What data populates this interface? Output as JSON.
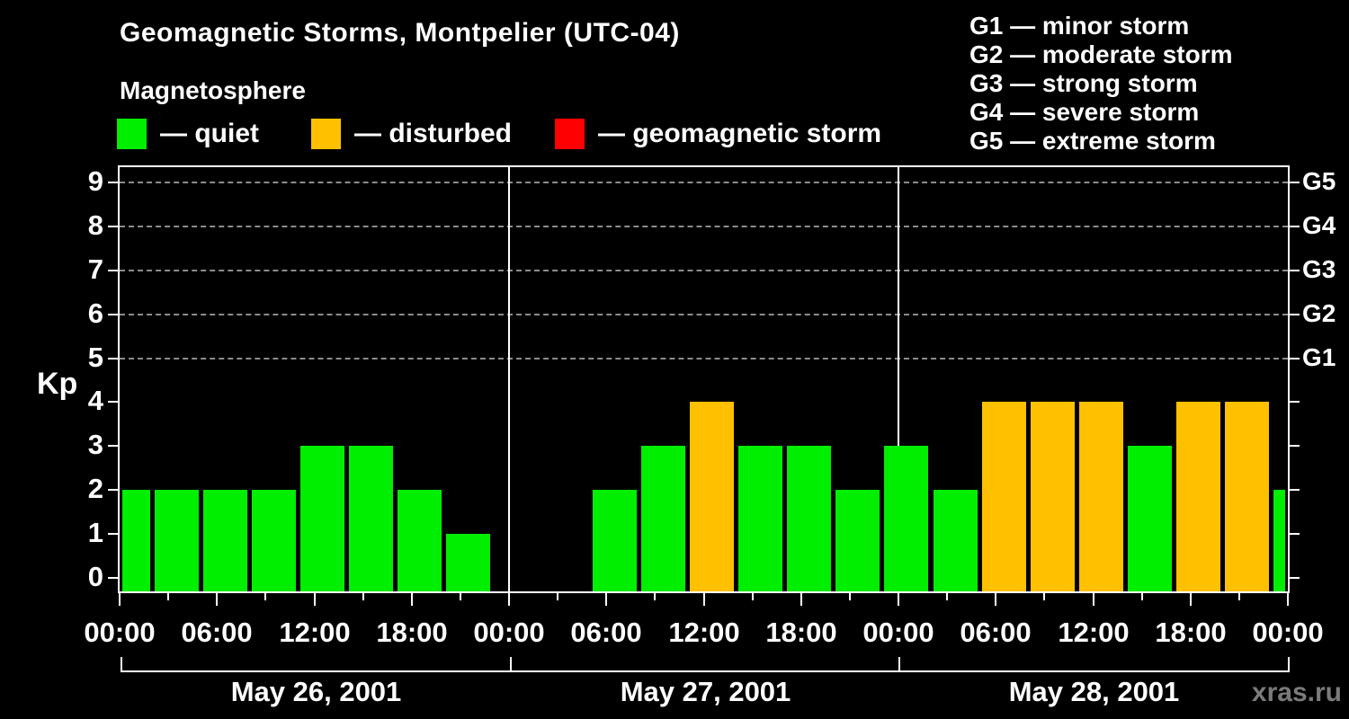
{
  "header": {
    "title": "Geomagnetic Storms, Montpelier (UTC-04)",
    "subtitle": "Magnetosphere",
    "condition_legend": [
      {
        "key": "quiet",
        "label": "— quiet",
        "color": "#00EE00"
      },
      {
        "key": "disturbed",
        "label": "— disturbed",
        "color": "#FFC000"
      },
      {
        "key": "storm",
        "label": "— geomagnetic storm",
        "color": "#FF0000"
      }
    ],
    "g_scale_legend": [
      "G1 — minor storm",
      "G2 — moderate storm",
      "G3 — strong storm",
      "G4 — severe storm",
      "G5 — extreme storm"
    ]
  },
  "watermark": "xras.ru",
  "chart_data": {
    "type": "bar",
    "title": "Geomagnetic Storms, Montpelier (UTC-04)",
    "ylabel": "Kp",
    "ylim": [
      0,
      9
    ],
    "y_tick_labels": [
      "0",
      "1",
      "2",
      "3",
      "4",
      "5",
      "6",
      "7",
      "8",
      "9"
    ],
    "right_axis_labels": [
      {
        "kp": 5,
        "label": "G1"
      },
      {
        "kp": 6,
        "label": "G2"
      },
      {
        "kp": 7,
        "label": "G3"
      },
      {
        "kp": 8,
        "label": "G4"
      },
      {
        "kp": 9,
        "label": "G5"
      }
    ],
    "grid_levels": [
      5,
      6,
      7,
      8,
      9
    ],
    "hours_span": 72,
    "bar_interval_hours": 3,
    "day_boundaries_h": [
      0,
      24,
      48,
      72
    ],
    "days": [
      "May 26, 2001",
      "May 27, 2001",
      "May 28, 2001"
    ],
    "x_major_tick_every_h": 6,
    "x_minor_tick_every_h": 3,
    "x_tick_labels": [
      "00:00",
      "06:00",
      "12:00",
      "18:00",
      "00:00",
      "06:00",
      "12:00",
      "18:00",
      "00:00",
      "06:00",
      "12:00",
      "18:00",
      "00:00"
    ],
    "colors": {
      "quiet": "#00EE00",
      "disturbed": "#FFC000",
      "storm": "#FF0000"
    },
    "missing_data_intervals_h": [
      [
        23,
        29
      ]
    ],
    "bars": [
      {
        "start_h": 0,
        "end_h": 2,
        "kp": 2,
        "state": "quiet"
      },
      {
        "start_h": 2,
        "end_h": 5,
        "kp": 2,
        "state": "quiet"
      },
      {
        "start_h": 5,
        "end_h": 8,
        "kp": 2,
        "state": "quiet"
      },
      {
        "start_h": 8,
        "end_h": 11,
        "kp": 2,
        "state": "quiet"
      },
      {
        "start_h": 11,
        "end_h": 14,
        "kp": 3,
        "state": "quiet"
      },
      {
        "start_h": 14,
        "end_h": 17,
        "kp": 3,
        "state": "quiet"
      },
      {
        "start_h": 17,
        "end_h": 20,
        "kp": 2,
        "state": "quiet"
      },
      {
        "start_h": 20,
        "end_h": 23,
        "kp": 1,
        "state": "quiet"
      },
      {
        "start_h": 29,
        "end_h": 32,
        "kp": 2,
        "state": "quiet"
      },
      {
        "start_h": 32,
        "end_h": 35,
        "kp": 3,
        "state": "quiet"
      },
      {
        "start_h": 35,
        "end_h": 38,
        "kp": 4,
        "state": "disturbed"
      },
      {
        "start_h": 38,
        "end_h": 41,
        "kp": 3,
        "state": "quiet"
      },
      {
        "start_h": 41,
        "end_h": 44,
        "kp": 3,
        "state": "quiet"
      },
      {
        "start_h": 44,
        "end_h": 47,
        "kp": 2,
        "state": "quiet"
      },
      {
        "start_h": 47,
        "end_h": 50,
        "kp": 3,
        "state": "quiet"
      },
      {
        "start_h": 50,
        "end_h": 53,
        "kp": 2,
        "state": "quiet"
      },
      {
        "start_h": 53,
        "end_h": 56,
        "kp": 4,
        "state": "disturbed"
      },
      {
        "start_h": 56,
        "end_h": 59,
        "kp": 4,
        "state": "disturbed"
      },
      {
        "start_h": 59,
        "end_h": 62,
        "kp": 4,
        "state": "disturbed"
      },
      {
        "start_h": 62,
        "end_h": 65,
        "kp": 3,
        "state": "quiet"
      },
      {
        "start_h": 65,
        "end_h": 68,
        "kp": 4,
        "state": "disturbed"
      },
      {
        "start_h": 68,
        "end_h": 71,
        "kp": 4,
        "state": "disturbed"
      },
      {
        "start_h": 71,
        "end_h": 72,
        "kp": 2,
        "state": "quiet"
      }
    ]
  }
}
